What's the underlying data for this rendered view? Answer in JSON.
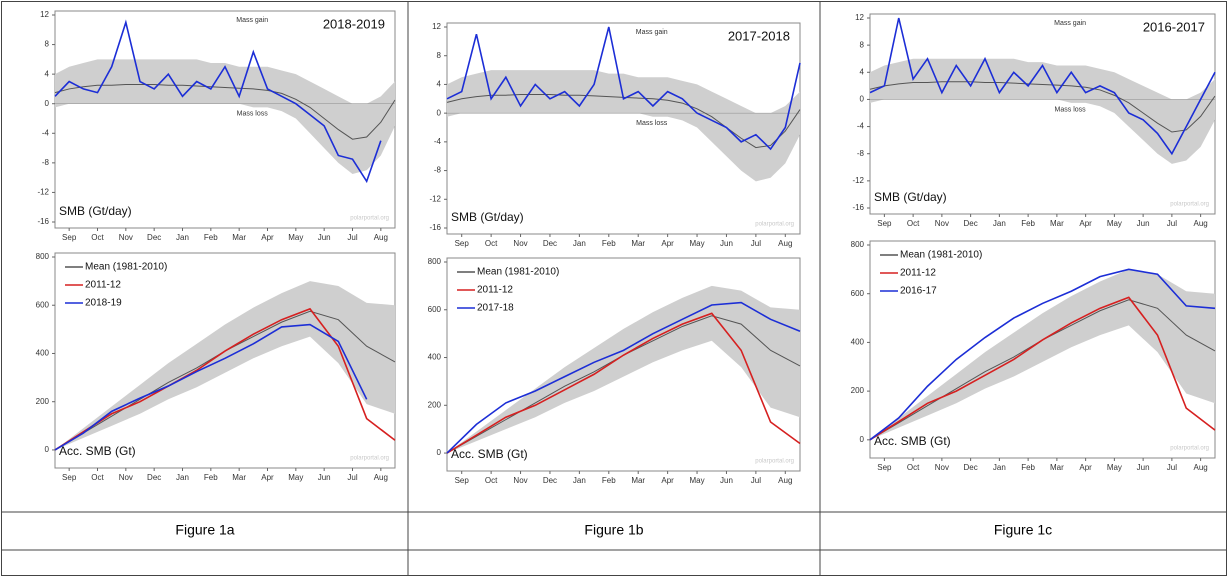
{
  "table": {
    "captions": [
      "Figure 1a",
      "Figure 1b",
      "Figure 1c"
    ]
  },
  "chart_data": [
    {
      "type": "line",
      "title": "2018-2019",
      "annotations": [
        "Mass gain",
        "Mass loss"
      ],
      "ylabel": "SMB (Gt/day)",
      "source": "polarportal.org",
      "x": [
        0,
        15,
        30,
        45,
        60,
        75,
        90,
        105,
        120,
        135,
        150,
        165,
        180,
        195,
        210,
        225,
        240,
        255,
        270,
        285,
        300,
        315,
        330,
        345,
        360
      ],
      "xlim": [
        0,
        360
      ],
      "xticks": [
        {
          "value": 15,
          "label": "Sep"
        },
        {
          "value": 45,
          "label": "Oct"
        },
        {
          "value": 75,
          "label": "Nov"
        },
        {
          "value": 105,
          "label": "Dec"
        },
        {
          "value": 135,
          "label": "Jan"
        },
        {
          "value": 165,
          "label": "Feb"
        },
        {
          "value": 195,
          "label": "Mar"
        },
        {
          "value": 225,
          "label": "Apr"
        },
        {
          "value": 255,
          "label": "May"
        },
        {
          "value": 285,
          "label": "Jun"
        },
        {
          "value": 315,
          "label": "Jul"
        },
        {
          "value": 345,
          "label": "Aug"
        }
      ],
      "ylim": [
        -16,
        12
      ],
      "yticks": [
        -16,
        -12,
        -8,
        -4,
        0,
        4,
        8,
        12
      ],
      "band": {
        "color": "#cfcfcf",
        "upper": [
          4,
          5,
          5.5,
          6,
          6,
          6,
          6,
          6,
          6,
          6,
          6,
          5.5,
          5.5,
          5,
          5,
          5,
          4.5,
          4,
          3,
          2,
          1,
          0,
          0,
          1,
          3
        ],
        "lower": [
          -0.5,
          0,
          0,
          0,
          0,
          0,
          0,
          0,
          0,
          0,
          0,
          0,
          0,
          0,
          -0.5,
          -0.5,
          -1,
          -2,
          -4,
          -6,
          -8,
          -9.5,
          -9,
          -7,
          -3
        ]
      },
      "series": [
        {
          "color": "#555555",
          "values": [
            1.5,
            2,
            2.3,
            2.5,
            2.5,
            2.6,
            2.6,
            2.6,
            2.5,
            2.5,
            2.4,
            2.3,
            2.2,
            2.1,
            2,
            1.8,
            1.4,
            0.6,
            -0.5,
            -2,
            -3.5,
            -4.8,
            -4.5,
            -2.5,
            0.5
          ]
        },
        {
          "color": "#1c2ed6",
          "values": [
            1,
            3,
            2,
            1.5,
            5,
            11,
            3,
            2,
            4,
            1,
            3,
            2,
            5,
            1,
            7,
            2,
            1,
            0,
            -1.5,
            -3,
            -7,
            -7.5,
            -10.5,
            -5,
            null
          ]
        }
      ]
    },
    {
      "type": "line",
      "ylabel": "Acc. SMB (Gt)",
      "source": "polarportal.org",
      "legend": "upper left",
      "x": [
        0,
        30,
        60,
        90,
        120,
        150,
        180,
        210,
        240,
        270,
        300,
        330,
        360
      ],
      "xlim": [
        0,
        360
      ],
      "xticks": [
        {
          "value": 15,
          "label": "Sep"
        },
        {
          "value": 45,
          "label": "Oct"
        },
        {
          "value": 75,
          "label": "Nov"
        },
        {
          "value": 105,
          "label": "Dec"
        },
        {
          "value": 135,
          "label": "Jan"
        },
        {
          "value": 165,
          "label": "Feb"
        },
        {
          "value": 195,
          "label": "Mar"
        },
        {
          "value": 225,
          "label": "Apr"
        },
        {
          "value": 255,
          "label": "May"
        },
        {
          "value": 285,
          "label": "Jun"
        },
        {
          "value": 315,
          "label": "Jul"
        },
        {
          "value": 345,
          "label": "Aug"
        }
      ],
      "ylim": [
        -50,
        800
      ],
      "yticks": [
        0,
        200,
        400,
        600,
        800
      ],
      "band": {
        "color": "#cfcfcf",
        "upper": [
          0,
          90,
          180,
          270,
          360,
          440,
          520,
          590,
          650,
          700,
          680,
          610,
          600
        ],
        "lower": [
          0,
          50,
          100,
          150,
          210,
          260,
          320,
          380,
          430,
          470,
          360,
          190,
          150
        ]
      },
      "series": [
        {
          "name": "Mean (1981-2010)",
          "color": "#555555",
          "values": [
            0,
            70,
            140,
            210,
            280,
            340,
            410,
            470,
            530,
            575,
            540,
            430,
            365
          ]
        },
        {
          "name": "2011-12",
          "color": "#d62020",
          "values": [
            0,
            75,
            150,
            200,
            265,
            330,
            410,
            480,
            540,
            585,
            430,
            130,
            40
          ]
        },
        {
          "name": "2018-19",
          "color": "#1c2ed6",
          "values": [
            0,
            70,
            160,
            215,
            265,
            325,
            380,
            440,
            510,
            520,
            450,
            210,
            null
          ]
        }
      ]
    },
    {
      "type": "line",
      "title": "2017-2018",
      "annotations": [
        "Mass gain",
        "Mass loss"
      ],
      "ylabel": "SMB (Gt/day)",
      "source": "polarportal.org",
      "x": [
        0,
        15,
        30,
        45,
        60,
        75,
        90,
        105,
        120,
        135,
        150,
        165,
        180,
        195,
        210,
        225,
        240,
        255,
        270,
        285,
        300,
        315,
        330,
        345,
        360
      ],
      "xlim": [
        0,
        360
      ],
      "xticks": [
        {
          "value": 15,
          "label": "Sep"
        },
        {
          "value": 45,
          "label": "Oct"
        },
        {
          "value": 75,
          "label": "Nov"
        },
        {
          "value": 105,
          "label": "Dec"
        },
        {
          "value": 135,
          "label": "Jan"
        },
        {
          "value": 165,
          "label": "Feb"
        },
        {
          "value": 195,
          "label": "Mar"
        },
        {
          "value": 225,
          "label": "Apr"
        },
        {
          "value": 255,
          "label": "May"
        },
        {
          "value": 285,
          "label": "Jun"
        },
        {
          "value": 315,
          "label": "Jul"
        },
        {
          "value": 345,
          "label": "Aug"
        }
      ],
      "ylim": [
        -16,
        12
      ],
      "yticks": [
        -16,
        -12,
        -8,
        -4,
        0,
        4,
        8,
        12
      ],
      "band": {
        "color": "#cfcfcf",
        "upper": [
          4,
          5,
          5.5,
          6,
          6,
          6,
          6,
          6,
          6,
          6,
          6,
          5.5,
          5.5,
          5,
          5,
          5,
          4.5,
          4,
          3,
          2,
          1,
          0,
          0,
          1,
          3
        ],
        "lower": [
          -0.5,
          0,
          0,
          0,
          0,
          0,
          0,
          0,
          0,
          0,
          0,
          0,
          0,
          0,
          -0.5,
          -0.5,
          -1,
          -2,
          -4,
          -6,
          -8,
          -9.5,
          -9,
          -7,
          -3
        ]
      },
      "series": [
        {
          "color": "#555555",
          "values": [
            1.5,
            2,
            2.3,
            2.5,
            2.5,
            2.6,
            2.6,
            2.6,
            2.5,
            2.5,
            2.4,
            2.3,
            2.2,
            2.1,
            2,
            1.8,
            1.4,
            0.6,
            -0.5,
            -2,
            -3.5,
            -4.8,
            -4.5,
            -2.5,
            0.5
          ]
        },
        {
          "color": "#1c2ed6",
          "values": [
            2,
            3,
            11,
            2,
            5,
            1,
            4,
            2,
            3,
            1,
            4,
            12,
            2,
            3,
            1,
            3,
            2,
            0,
            -1,
            -2,
            -4,
            -3,
            -5,
            -2,
            7
          ]
        }
      ]
    },
    {
      "type": "line",
      "ylabel": "Acc. SMB (Gt)",
      "source": "polarportal.org",
      "legend": "upper left",
      "x": [
        0,
        30,
        60,
        90,
        120,
        150,
        180,
        210,
        240,
        270,
        300,
        330,
        360
      ],
      "xlim": [
        0,
        360
      ],
      "xticks": [
        {
          "value": 15,
          "label": "Sep"
        },
        {
          "value": 45,
          "label": "Oct"
        },
        {
          "value": 75,
          "label": "Nov"
        },
        {
          "value": 105,
          "label": "Dec"
        },
        {
          "value": 135,
          "label": "Jan"
        },
        {
          "value": 165,
          "label": "Feb"
        },
        {
          "value": 195,
          "label": "Mar"
        },
        {
          "value": 225,
          "label": "Apr"
        },
        {
          "value": 255,
          "label": "May"
        },
        {
          "value": 285,
          "label": "Jun"
        },
        {
          "value": 315,
          "label": "Jul"
        },
        {
          "value": 345,
          "label": "Aug"
        }
      ],
      "ylim": [
        -50,
        800
      ],
      "yticks": [
        0,
        200,
        400,
        600,
        800
      ],
      "band": {
        "color": "#cfcfcf",
        "upper": [
          0,
          90,
          180,
          270,
          360,
          440,
          520,
          590,
          650,
          700,
          680,
          610,
          600
        ],
        "lower": [
          0,
          50,
          100,
          150,
          210,
          260,
          320,
          380,
          430,
          470,
          360,
          190,
          150
        ]
      },
      "series": [
        {
          "name": "Mean (1981-2010)",
          "color": "#555555",
          "values": [
            0,
            70,
            140,
            210,
            280,
            340,
            410,
            470,
            530,
            575,
            540,
            430,
            365
          ]
        },
        {
          "name": "2011-12",
          "color": "#d62020",
          "values": [
            0,
            75,
            150,
            200,
            265,
            330,
            410,
            480,
            540,
            585,
            430,
            130,
            40
          ]
        },
        {
          "name": "2017-18",
          "color": "#1c2ed6",
          "values": [
            0,
            120,
            210,
            260,
            320,
            380,
            430,
            500,
            560,
            620,
            630,
            560,
            510
          ]
        }
      ]
    },
    {
      "type": "line",
      "title": "2016-2017",
      "annotations": [
        "Mass gain",
        "Mass loss"
      ],
      "ylabel": "SMB (Gt/day)",
      "source": "polarportal.org",
      "x": [
        0,
        15,
        30,
        45,
        60,
        75,
        90,
        105,
        120,
        135,
        150,
        165,
        180,
        195,
        210,
        225,
        240,
        255,
        270,
        285,
        300,
        315,
        330,
        345,
        360
      ],
      "xlim": [
        0,
        360
      ],
      "xticks": [
        {
          "value": 15,
          "label": "Sep"
        },
        {
          "value": 45,
          "label": "Oct"
        },
        {
          "value": 75,
          "label": "Nov"
        },
        {
          "value": 105,
          "label": "Dec"
        },
        {
          "value": 135,
          "label": "Jan"
        },
        {
          "value": 165,
          "label": "Feb"
        },
        {
          "value": 195,
          "label": "Mar"
        },
        {
          "value": 225,
          "label": "Apr"
        },
        {
          "value": 255,
          "label": "May"
        },
        {
          "value": 285,
          "label": "Jun"
        },
        {
          "value": 315,
          "label": "Jul"
        },
        {
          "value": 345,
          "label": "Aug"
        }
      ],
      "ylim": [
        -16,
        12
      ],
      "yticks": [
        -16,
        -12,
        -8,
        -4,
        0,
        4,
        8,
        12
      ],
      "band": {
        "color": "#cfcfcf",
        "upper": [
          4,
          5,
          5.5,
          6,
          6,
          6,
          6,
          6,
          6,
          6,
          6,
          5.5,
          5.5,
          5,
          5,
          5,
          4.5,
          4,
          3,
          2,
          1,
          0,
          0,
          1,
          3
        ],
        "lower": [
          -0.5,
          0,
          0,
          0,
          0,
          0,
          0,
          0,
          0,
          0,
          0,
          0,
          0,
          0,
          -0.5,
          -0.5,
          -1,
          -2,
          -4,
          -6,
          -8,
          -9.5,
          -9,
          -7,
          -3
        ]
      },
      "series": [
        {
          "color": "#555555",
          "values": [
            1.5,
            2,
            2.3,
            2.5,
            2.5,
            2.6,
            2.6,
            2.6,
            2.5,
            2.5,
            2.4,
            2.3,
            2.2,
            2.1,
            2,
            1.8,
            1.4,
            0.6,
            -0.5,
            -2,
            -3.5,
            -4.8,
            -4.5,
            -2.5,
            0.5
          ]
        },
        {
          "color": "#1c2ed6",
          "values": [
            1,
            2,
            12,
            3,
            6,
            1,
            5,
            2,
            6,
            1,
            4,
            2,
            5,
            1,
            4,
            1,
            2,
            1,
            -2,
            -3,
            -5,
            -8,
            -4,
            0,
            4
          ]
        }
      ]
    },
    {
      "type": "line",
      "ylabel": "Acc. SMB (Gt)",
      "source": "polarportal.org",
      "legend": "upper left",
      "x": [
        0,
        30,
        60,
        90,
        120,
        150,
        180,
        210,
        240,
        270,
        300,
        330,
        360
      ],
      "xlim": [
        0,
        360
      ],
      "xticks": [
        {
          "value": 15,
          "label": "Sep"
        },
        {
          "value": 45,
          "label": "Oct"
        },
        {
          "value": 75,
          "label": "Nov"
        },
        {
          "value": 105,
          "label": "Dec"
        },
        {
          "value": 135,
          "label": "Jan"
        },
        {
          "value": 165,
          "label": "Feb"
        },
        {
          "value": 195,
          "label": "Mar"
        },
        {
          "value": 225,
          "label": "Apr"
        },
        {
          "value": 255,
          "label": "May"
        },
        {
          "value": 285,
          "label": "Jun"
        },
        {
          "value": 315,
          "label": "Jul"
        },
        {
          "value": 345,
          "label": "Aug"
        }
      ],
      "ylim": [
        -50,
        800
      ],
      "yticks": [
        0,
        200,
        400,
        600,
        800
      ],
      "band": {
        "color": "#cfcfcf",
        "upper": [
          0,
          90,
          180,
          270,
          360,
          440,
          520,
          590,
          650,
          700,
          680,
          610,
          600
        ],
        "lower": [
          0,
          50,
          100,
          150,
          210,
          260,
          320,
          380,
          430,
          470,
          360,
          190,
          150
        ]
      },
      "series": [
        {
          "name": "Mean (1981-2010)",
          "color": "#555555",
          "values": [
            0,
            70,
            140,
            210,
            280,
            340,
            410,
            470,
            530,
            575,
            540,
            430,
            365
          ]
        },
        {
          "name": "2011-12",
          "color": "#d62020",
          "values": [
            0,
            75,
            150,
            200,
            265,
            330,
            410,
            480,
            540,
            585,
            430,
            130,
            40
          ]
        },
        {
          "name": "2016-17",
          "color": "#1c2ed6",
          "values": [
            0,
            90,
            220,
            330,
            420,
            500,
            560,
            610,
            670,
            700,
            680,
            550,
            540
          ]
        }
      ]
    }
  ]
}
